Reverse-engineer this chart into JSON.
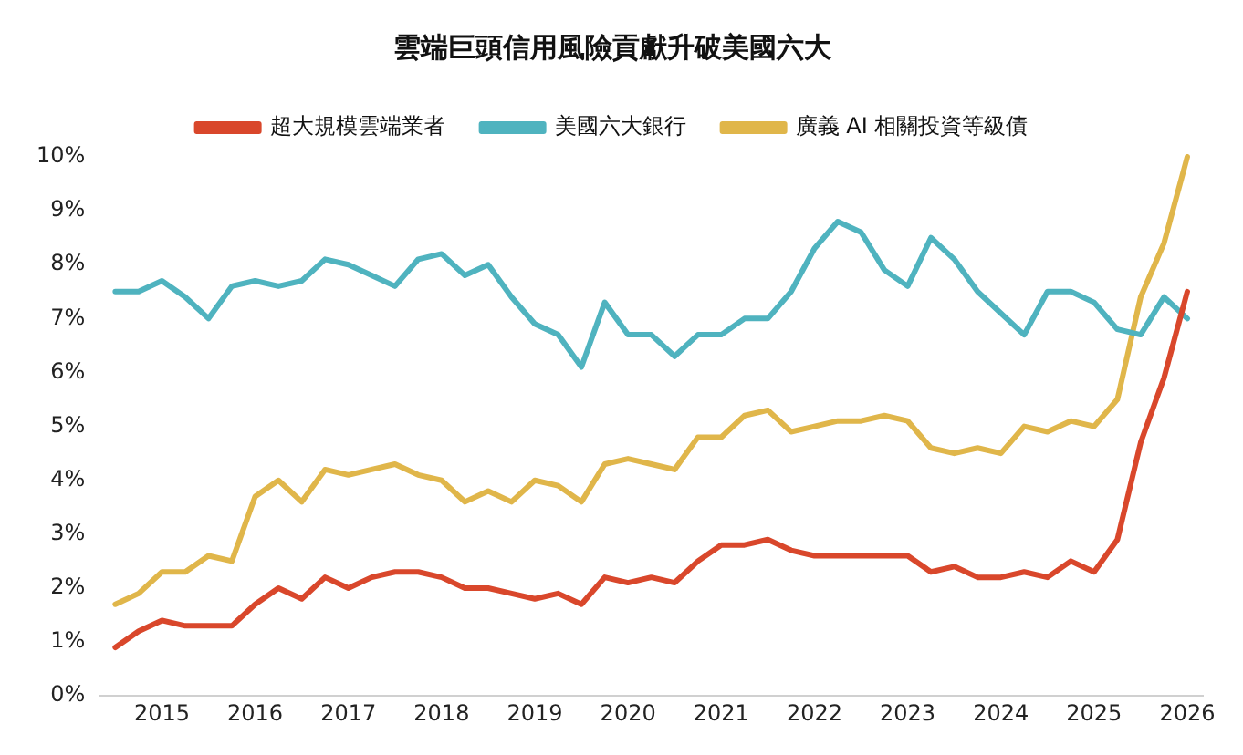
{
  "chart_data": {
    "type": "line",
    "title": "雲端巨頭信用風險貢獻升破美國六大",
    "x": [
      "2014-07",
      "2014-10",
      "2015-01",
      "2015-04",
      "2015-07",
      "2015-10",
      "2016-01",
      "2016-04",
      "2016-07",
      "2016-10",
      "2017-01",
      "2017-04",
      "2017-07",
      "2017-10",
      "2018-01",
      "2018-04",
      "2018-07",
      "2018-10",
      "2019-01",
      "2019-04",
      "2019-07",
      "2019-10",
      "2020-01",
      "2020-04",
      "2020-07",
      "2020-10",
      "2021-01",
      "2021-04",
      "2021-07",
      "2021-10",
      "2022-01",
      "2022-04",
      "2022-07",
      "2022-10",
      "2023-01",
      "2023-04",
      "2023-07",
      "2023-10",
      "2024-01",
      "2024-04",
      "2024-07",
      "2024-10",
      "2025-01",
      "2025-04",
      "2025-07",
      "2025-10",
      "2026-01"
    ],
    "series": [
      {
        "name": "超大規模雲端業者",
        "color": "#d9472b",
        "values": [
          0.9,
          1.2,
          1.4,
          1.3,
          1.3,
          1.3,
          1.7,
          2.0,
          1.8,
          2.2,
          2.0,
          2.2,
          2.3,
          2.3,
          2.2,
          2.0,
          2.0,
          1.9,
          1.8,
          1.9,
          1.7,
          2.2,
          2.1,
          2.2,
          2.1,
          2.5,
          2.8,
          2.8,
          2.9,
          2.7,
          2.6,
          2.6,
          2.6,
          2.6,
          2.6,
          2.3,
          2.4,
          2.2,
          2.2,
          2.3,
          2.2,
          2.5,
          2.3,
          2.9,
          4.7,
          5.9,
          7.5
        ]
      },
      {
        "name": "美國六大銀行",
        "color": "#4fb3bf",
        "values": [
          7.5,
          7.5,
          7.7,
          7.4,
          7.0,
          7.6,
          7.7,
          7.6,
          7.7,
          8.1,
          8.0,
          7.8,
          7.6,
          8.1,
          8.2,
          7.8,
          8.0,
          7.4,
          6.9,
          6.7,
          6.1,
          7.3,
          6.7,
          6.7,
          6.3,
          6.7,
          6.7,
          7.0,
          7.0,
          7.5,
          8.3,
          8.8,
          8.6,
          7.9,
          7.6,
          8.5,
          8.1,
          7.5,
          7.1,
          6.7,
          7.5,
          7.5,
          7.3,
          6.8,
          6.7,
          7.4,
          7.0
        ]
      },
      {
        "name": "廣義 AI 相關投資等級債",
        "color": "#e0b64a",
        "values": [
          1.7,
          1.9,
          2.3,
          2.3,
          2.6,
          2.5,
          3.7,
          4.0,
          3.6,
          4.2,
          4.1,
          4.2,
          4.3,
          4.1,
          4.0,
          3.6,
          3.8,
          3.6,
          4.0,
          3.9,
          3.6,
          4.3,
          4.4,
          4.3,
          4.2,
          4.8,
          4.8,
          5.2,
          5.3,
          4.9,
          5.0,
          5.1,
          5.1,
          5.2,
          5.1,
          4.6,
          4.5,
          4.6,
          4.5,
          5.0,
          4.9,
          5.1,
          5.0,
          5.5,
          7.4,
          8.4,
          10.0
        ]
      }
    ],
    "xlim": [
      "2014-05",
      "2026-03"
    ],
    "xticks": [
      "2015",
      "2016",
      "2017",
      "2018",
      "2019",
      "2020",
      "2021",
      "2022",
      "2023",
      "2024",
      "2025",
      "2026"
    ],
    "ylim": [
      0,
      10
    ],
    "yticks": [
      {
        "value": 0,
        "label": "0%"
      },
      {
        "value": 1,
        "label": "1%"
      },
      {
        "value": 2,
        "label": "2%"
      },
      {
        "value": 3,
        "label": "3%"
      },
      {
        "value": 4,
        "label": "4%"
      },
      {
        "value": 5,
        "label": "5%"
      },
      {
        "value": 6,
        "label": "6%"
      },
      {
        "value": 7,
        "label": "7%"
      },
      {
        "value": 8,
        "label": "8%"
      },
      {
        "value": 9,
        "label": "9%"
      },
      {
        "value": 10,
        "label": "10%"
      }
    ],
    "grid": false,
    "legend": "top",
    "marker": "none",
    "line_style": "solid"
  }
}
